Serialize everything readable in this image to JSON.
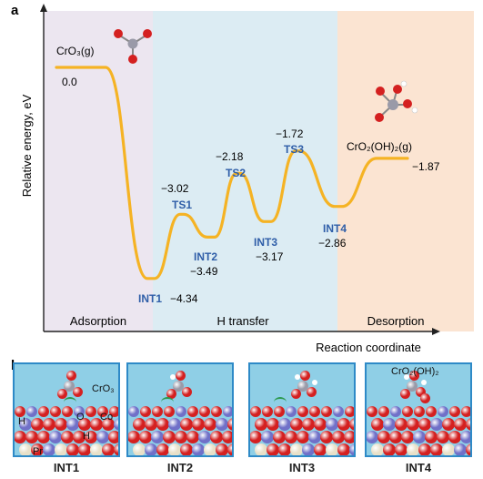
{
  "panel_a_label": "a",
  "panel_b_label": "b",
  "chart_data": {
    "type": "line",
    "ylabel": "Relative energy, eV",
    "xlabel": "Reaction coordinate",
    "regions": [
      "Adsorption",
      "H transfer",
      "Desorption"
    ],
    "states": [
      {
        "name": "CrO₃(g)",
        "energy": 0.0,
        "label": "0.0",
        "kind": "species"
      },
      {
        "name": "INT1",
        "energy": -4.34,
        "label": "−4.34",
        "kind": "intermediate"
      },
      {
        "name": "TS1",
        "energy": -3.02,
        "label": "−3.02",
        "kind": "transition"
      },
      {
        "name": "INT2",
        "energy": -3.49,
        "label": "−3.49",
        "kind": "intermediate"
      },
      {
        "name": "TS2",
        "energy": -2.18,
        "label": "−2.18",
        "kind": "transition"
      },
      {
        "name": "INT3",
        "energy": -3.17,
        "label": "−3.17",
        "kind": "intermediate"
      },
      {
        "name": "TS3",
        "energy": -1.72,
        "label": "−1.72",
        "kind": "transition"
      },
      {
        "name": "INT4",
        "energy": -2.86,
        "label": "−2.86",
        "kind": "intermediate"
      },
      {
        "name": "CrO₂(OH)₂(g)",
        "energy": -1.87,
        "label": "−1.87",
        "kind": "species"
      }
    ],
    "colors": {
      "curve": "#f5b324",
      "adsorption_bg": "#ece6f0",
      "htransfer_bg": "#dcecf3",
      "desorption_bg": "#fbe4d2",
      "state_label": "#2f5ea8"
    }
  },
  "panel_b": {
    "panels": [
      {
        "label": "INT1",
        "annotations": [
          "CrO₃",
          "O",
          "Co",
          "H",
          "H",
          "Pr"
        ]
      },
      {
        "label": "INT2",
        "annotations": []
      },
      {
        "label": "INT3",
        "annotations": []
      },
      {
        "label": "INT4",
        "annotations": [
          "CrO₂(OH)₂"
        ]
      }
    ],
    "colors": {
      "frame": "#2e8ac7",
      "oxygen": "#d42020",
      "cobalt": "#7070c8",
      "praseodymium": "#e8e0c8",
      "chromium": "#9a9aa8",
      "hydrogen": "#ffffff",
      "arrow": "#2e9a50"
    }
  }
}
